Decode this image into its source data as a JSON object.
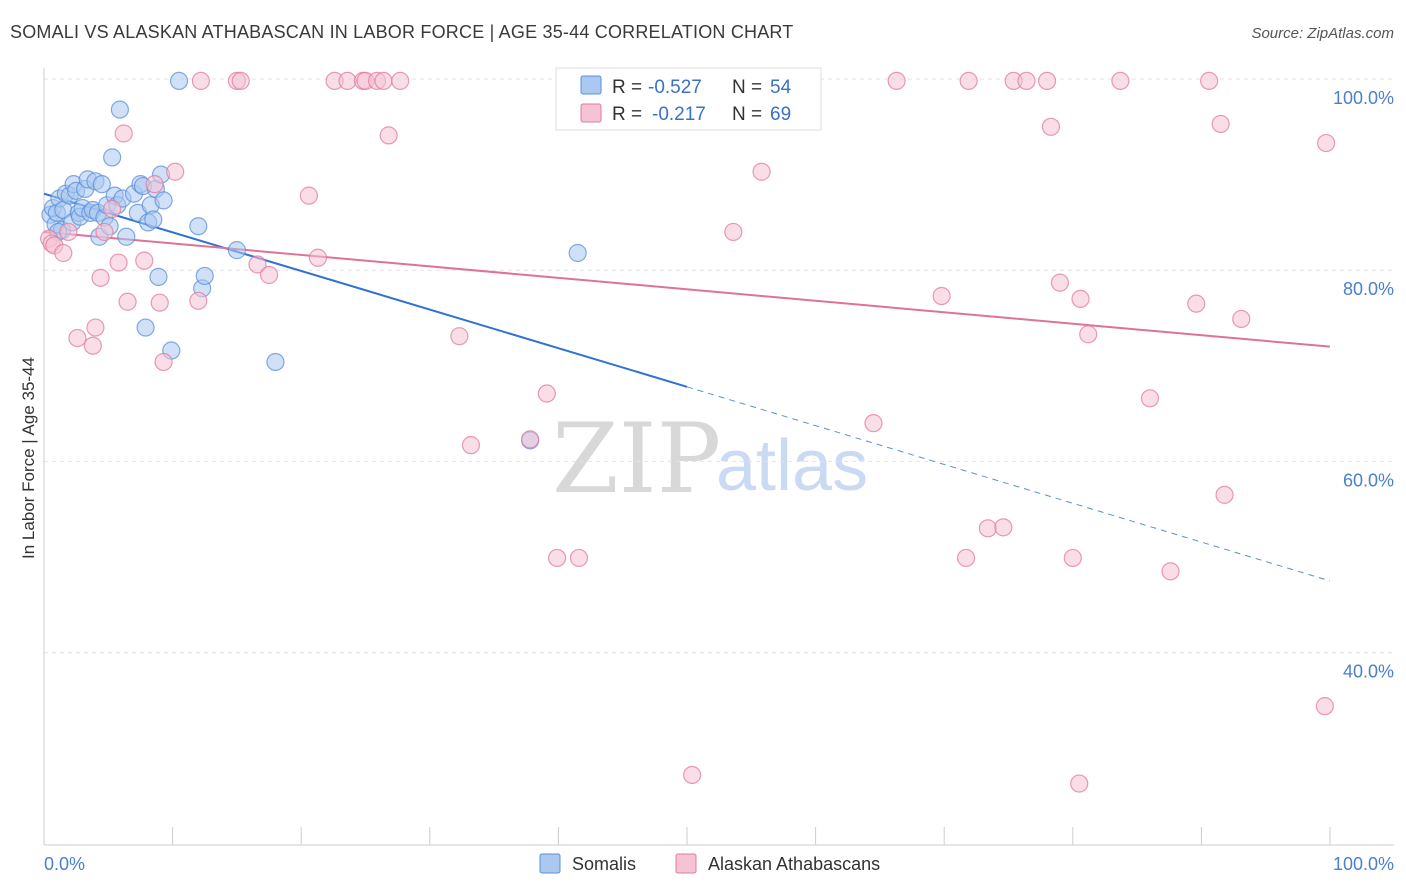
{
  "chart_data": {
    "type": "scatter",
    "title": "SOMALI VS ALASKAN ATHABASCAN IN LABOR FORCE | AGE 35-44 CORRELATION CHART",
    "source": "Source: ZipAtlas.com",
    "ylabel": "In Labor Force | Age 35-44",
    "xlim": [
      0,
      100
    ],
    "ylim": [
      20,
      100
    ],
    "x_tick_labels": [
      "0.0%",
      "100.0%"
    ],
    "y_ticks": [
      {
        "value": 100,
        "label": "100.0%"
      },
      {
        "value": 80,
        "label": "80.0%"
      },
      {
        "value": 60,
        "label": "60.0%"
      },
      {
        "value": 40,
        "label": "40.0%"
      }
    ],
    "watermark": {
      "zip": "ZIP",
      "atlas": "atlas"
    },
    "series": [
      {
        "name": "Somalis",
        "color": "#5b8fd9",
        "fill": "#aac8f0",
        "stats": {
          "r_label": "R =",
          "r": "-0.527",
          "n_label": "N =",
          "n": "54"
        },
        "trend": {
          "x0": 0,
          "y0": 88,
          "x1": 50,
          "y1": 67.8,
          "dash_to_x": 100,
          "dash_to_y": 47.5
        },
        "points": [
          [
            0.5,
            85.8
          ],
          [
            0.7,
            86.5
          ],
          [
            0.9,
            84.8
          ],
          [
            1.0,
            86.0
          ],
          [
            1.2,
            87.5
          ],
          [
            1.4,
            84.2
          ],
          [
            1.5,
            86.3
          ],
          [
            1.7,
            88.0
          ],
          [
            2.0,
            87.8
          ],
          [
            2.2,
            85.0
          ],
          [
            2.3,
            89.0
          ],
          [
            2.5,
            88.3
          ],
          [
            2.7,
            86.0
          ],
          [
            2.8,
            85.6
          ],
          [
            3.0,
            86.5
          ],
          [
            3.2,
            88.5
          ],
          [
            3.4,
            89.5
          ],
          [
            3.6,
            86.0
          ],
          [
            3.8,
            86.3
          ],
          [
            4.0,
            89.3
          ],
          [
            4.2,
            86.0
          ],
          [
            4.3,
            83.5
          ],
          [
            4.5,
            89.0
          ],
          [
            4.7,
            85.5
          ],
          [
            4.9,
            86.8
          ],
          [
            5.1,
            84.6
          ],
          [
            5.3,
            91.8
          ],
          [
            5.5,
            87.8
          ],
          [
            5.7,
            86.8
          ],
          [
            5.9,
            96.8
          ],
          [
            6.1,
            87.5
          ],
          [
            6.4,
            83.5
          ],
          [
            7.0,
            88.0
          ],
          [
            7.3,
            86.0
          ],
          [
            7.5,
            89.0
          ],
          [
            7.7,
            88.8
          ],
          [
            7.9,
            74.0
          ],
          [
            8.1,
            85.0
          ],
          [
            8.3,
            86.8
          ],
          [
            8.5,
            85.3
          ],
          [
            8.7,
            88.5
          ],
          [
            8.9,
            79.3
          ],
          [
            9.1,
            90.0
          ],
          [
            9.3,
            87.3
          ],
          [
            9.9,
            71.6
          ],
          [
            10.5,
            99.8
          ],
          [
            12.0,
            84.6
          ],
          [
            12.3,
            78.1
          ],
          [
            12.5,
            79.4
          ],
          [
            15.0,
            82.1
          ],
          [
            18.0,
            70.4
          ],
          [
            37.8,
            62.2
          ],
          [
            41.5,
            81.8
          ],
          [
            1.1,
            84.0
          ]
        ]
      },
      {
        "name": "Alaskan Athabascans",
        "color": "#e27a9e",
        "fill": "#f6c3d3",
        "stats": {
          "r_label": "R =",
          "r": "-0.217",
          "n_label": "N =",
          "n": "69"
        },
        "trend": {
          "x0": 0,
          "y0": 84,
          "x1": 100,
          "y1": 72
        },
        "points": [
          [
            0.4,
            83.3
          ],
          [
            0.6,
            82.8
          ],
          [
            0.8,
            82.6
          ],
          [
            1.5,
            81.8
          ],
          [
            1.9,
            84.0
          ],
          [
            2.6,
            72.9
          ],
          [
            3.8,
            72.1
          ],
          [
            4.0,
            74.0
          ],
          [
            4.4,
            79.2
          ],
          [
            4.7,
            84.0
          ],
          [
            5.3,
            86.4
          ],
          [
            5.8,
            80.8
          ],
          [
            6.2,
            94.3
          ],
          [
            6.5,
            76.7
          ],
          [
            7.8,
            81.0
          ],
          [
            8.6,
            89.0
          ],
          [
            9.0,
            76.6
          ],
          [
            9.3,
            70.4
          ],
          [
            10.2,
            90.3
          ],
          [
            12.0,
            76.8
          ],
          [
            12.2,
            99.8
          ],
          [
            15.0,
            99.8
          ],
          [
            15.3,
            99.8
          ],
          [
            16.6,
            80.6
          ],
          [
            17.5,
            79.5
          ],
          [
            20.6,
            87.8
          ],
          [
            21.3,
            81.3
          ],
          [
            22.6,
            99.8
          ],
          [
            23.6,
            99.8
          ],
          [
            24.8,
            99.8
          ],
          [
            25.0,
            99.8
          ],
          [
            25.9,
            99.8
          ],
          [
            26.4,
            99.8
          ],
          [
            26.8,
            94.1
          ],
          [
            27.7,
            99.8
          ],
          [
            32.3,
            73.1
          ],
          [
            33.2,
            61.7
          ],
          [
            37.8,
            62.3
          ],
          [
            39.1,
            67.1
          ],
          [
            39.9,
            49.9
          ],
          [
            41.6,
            49.9
          ],
          [
            53.6,
            84.0
          ],
          [
            55.8,
            90.3
          ],
          [
            58.2,
            99.8
          ],
          [
            64.5,
            64.0
          ],
          [
            66.3,
            99.8
          ],
          [
            69.8,
            77.3
          ],
          [
            71.7,
            49.9
          ],
          [
            71.9,
            99.8
          ],
          [
            73.4,
            53.0
          ],
          [
            74.6,
            53.1
          ],
          [
            75.4,
            99.8
          ],
          [
            76.4,
            99.8
          ],
          [
            78.0,
            99.8
          ],
          [
            78.3,
            95.0
          ],
          [
            79.0,
            78.7
          ],
          [
            80.0,
            49.9
          ],
          [
            80.6,
            77.0
          ],
          [
            81.2,
            73.3
          ],
          [
            83.7,
            99.8
          ],
          [
            86.0,
            66.6
          ],
          [
            87.6,
            48.5
          ],
          [
            89.6,
            76.5
          ],
          [
            90.6,
            99.8
          ],
          [
            91.5,
            95.3
          ],
          [
            91.8,
            56.5
          ],
          [
            93.1,
            74.9
          ],
          [
            99.7,
            93.3
          ],
          [
            99.6,
            34.4
          ]
        ]
      }
    ],
    "extra_points": [
      {
        "series": 1,
        "x": 50.4,
        "y": 27.2
      },
      {
        "series": 1,
        "x": 80.5,
        "y": 26.3
      }
    ]
  }
}
